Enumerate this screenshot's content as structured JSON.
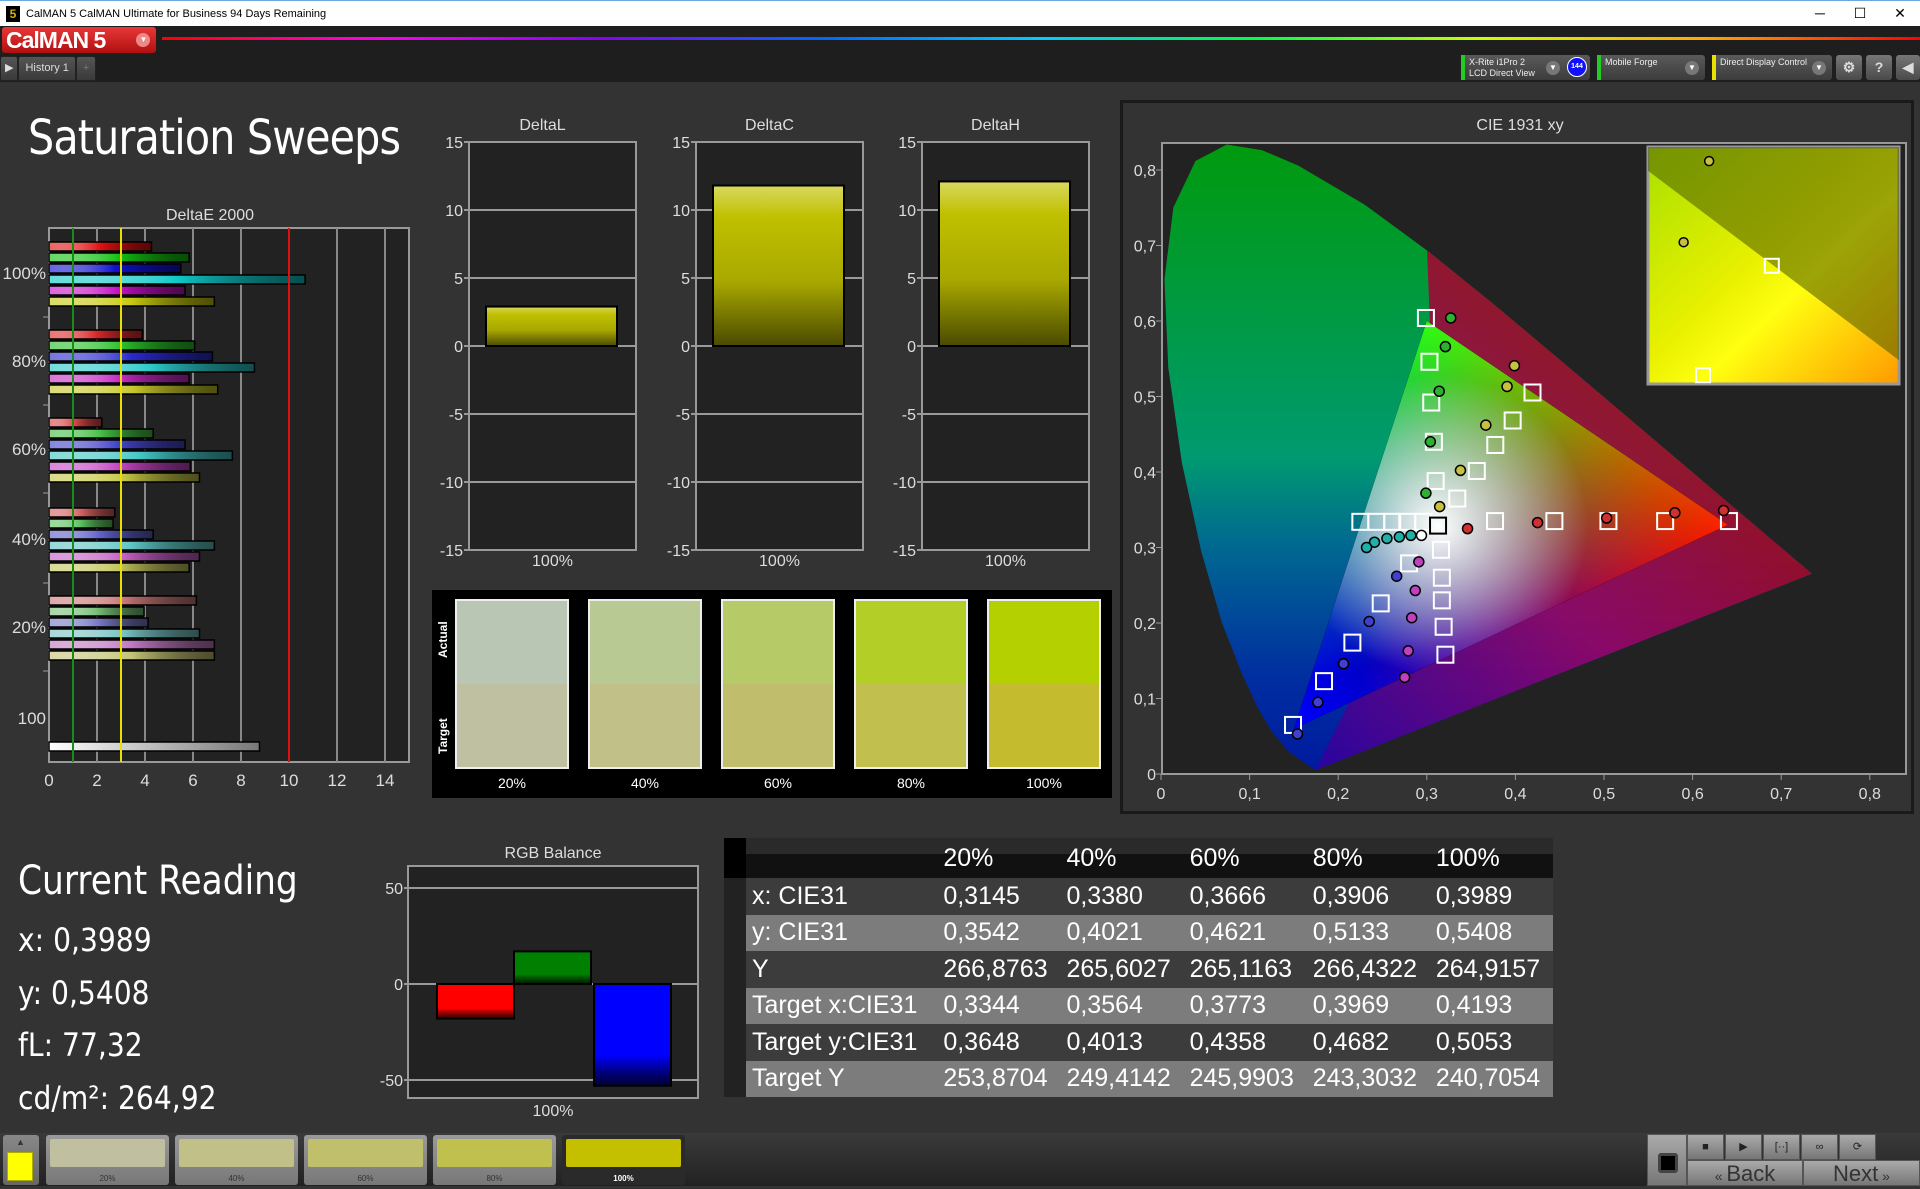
{
  "window": {
    "title": "CalMAN 5 CalMAN Ultimate for Business 94 Days Remaining",
    "icon": "5",
    "minimize": "─",
    "maximize": "☐",
    "close": "✕"
  },
  "app": {
    "logo": "CalMAN 5"
  },
  "tabs": [
    {
      "label": "History 1"
    }
  ],
  "devices": [
    {
      "line1": "X-Rite i1Pro 2",
      "line2": "LCD Direct View",
      "badge": "144",
      "color": "#22cc22"
    },
    {
      "line1": "Mobile Forge",
      "line2": "",
      "color": "#22cc22"
    },
    {
      "line1": "Direct Display Control",
      "line2": "",
      "color": "#e8e000"
    }
  ],
  "toolbar_icons": [
    "gear-icon",
    "help-icon",
    "collapse-icon"
  ],
  "page": {
    "title": "Saturation Sweeps"
  },
  "swatches": {
    "actual_label": "Actual",
    "target_label": "Target",
    "items": [
      {
        "label": "20%",
        "actual": "#b8c6b3",
        "target": "#bfbfa1"
      },
      {
        "label": "40%",
        "actual": "#b8c994",
        "target": "#c0c088"
      },
      {
        "label": "60%",
        "actual": "#b6cb68",
        "target": "#c0be6c"
      },
      {
        "label": "80%",
        "actual": "#b4ce28",
        "target": "#c1bf4e"
      },
      {
        "label": "100%",
        "actual": "#b4d000",
        "target": "#c4bc2e"
      }
    ]
  },
  "current_reading": {
    "title": "Current Reading",
    "x": "x: 0,3989",
    "y": "y: 0,5408",
    "fl": "fL: 77,32",
    "cdm2": "cd/m²: 264,92"
  },
  "table": {
    "headers": [
      "",
      "20%",
      "40%",
      "60%",
      "80%",
      "100%"
    ],
    "rows": [
      [
        "x: CIE31",
        "0,3145",
        "0,3380",
        "0,3666",
        "0,3906",
        "0,3989"
      ],
      [
        "y: CIE31",
        "0,3542",
        "0,4021",
        "0,4621",
        "0,5133",
        "0,5408"
      ],
      [
        "Y",
        "266,8763",
        "265,6027",
        "265,1163",
        "266,4322",
        "264,9157"
      ],
      [
        "Target x:CIE31",
        "0,3344",
        "0,3564",
        "0,3773",
        "0,3969",
        "0,4193"
      ],
      [
        "Target y:CIE31",
        "0,3648",
        "0,4013",
        "0,4358",
        "0,4682",
        "0,5053"
      ],
      [
        "Target Y",
        "253,8704",
        "249,4142",
        "245,9903",
        "243,3032",
        "240,7054"
      ]
    ]
  },
  "bottom": {
    "current_color": "#ffff00",
    "patches": [
      {
        "label": "20%",
        "color": "#c0bfa0"
      },
      {
        "label": "40%",
        "color": "#c0c088"
      },
      {
        "label": "60%",
        "color": "#c0bf6c"
      },
      {
        "label": "80%",
        "color": "#c0c04e"
      },
      {
        "label": "100%",
        "color": "#c4c000",
        "selected": true
      }
    ],
    "controls": [
      "stop-icon",
      "play-icon",
      "bracket-icon",
      "loop-icon",
      "refresh-icon"
    ],
    "back": "Back",
    "next": "Next"
  },
  "chart_data": [
    {
      "type": "bar",
      "orientation": "horizontal",
      "title": "DeltaE 2000",
      "xlim": [
        0,
        15
      ],
      "xticks": [
        0,
        2,
        4,
        6,
        8,
        10,
        12,
        14
      ],
      "reference_lines": [
        {
          "value": 1,
          "color": "#1a8a1a"
        },
        {
          "value": 3,
          "color": "#e8e000"
        },
        {
          "value": 10,
          "color": "#e01010"
        }
      ],
      "categories": [
        "100%",
        "80%",
        "60%",
        "40%",
        "20%"
      ],
      "series": [
        {
          "color": "#e01010",
          "values": [
            4.27,
            3.89,
            2.2,
            2.74,
            6.14
          ]
        },
        {
          "color": "#10c010",
          "values": [
            5.84,
            6.07,
            4.34,
            2.67,
            3.96
          ]
        },
        {
          "color": "#1010d0",
          "values": [
            5.49,
            6.81,
            5.67,
            4.34,
            4.13
          ]
        },
        {
          "color": "#10c8c8",
          "values": [
            10.67,
            8.56,
            7.64,
            6.89,
            6.27
          ]
        },
        {
          "color": "#c810c8",
          "values": [
            5.67,
            5.84,
            5.89,
            6.27,
            6.89
          ]
        },
        {
          "color": "#c8c810",
          "values": [
            6.89,
            7.03,
            6.27,
            5.84,
            6.89
          ]
        }
      ],
      "grayscale": {
        "label": "100",
        "value": 8.77,
        "color": "#ffffff"
      }
    },
    {
      "type": "bar",
      "title": "DeltaL",
      "categories": [
        "100%"
      ],
      "values": [
        2.9
      ],
      "ylim": [
        -15,
        15
      ],
      "yticks": [
        15,
        10,
        5,
        0,
        -5,
        -10,
        -15
      ]
    },
    {
      "type": "bar",
      "title": "DeltaC",
      "categories": [
        "100%"
      ],
      "values": [
        11.8
      ],
      "ylim": [
        -15,
        15
      ],
      "yticks": [
        15,
        10,
        5,
        0,
        -5,
        -10,
        -15
      ]
    },
    {
      "type": "bar",
      "title": "DeltaH",
      "categories": [
        "100%"
      ],
      "values": [
        12.1
      ],
      "ylim": [
        -15,
        15
      ],
      "yticks": [
        15,
        10,
        5,
        0,
        -5,
        -10,
        -15
      ]
    },
    {
      "type": "scatter",
      "title": "CIE 1931 xy",
      "xlim": [
        0,
        0.85
      ],
      "ylim": [
        0,
        0.85
      ],
      "xticks": [
        "0",
        "0,1",
        "0,2",
        "0,3",
        "0,4",
        "0,5",
        "0,6",
        "0,7",
        "0,8"
      ],
      "yticks": [
        "0",
        "0,1",
        "0,2",
        "0,3",
        "0,4",
        "0,5",
        "0,6",
        "0,7",
        "0,8"
      ],
      "gamut": {
        "red": [
          0.64,
          0.33
        ],
        "green": [
          0.3,
          0.6
        ],
        "blue": [
          0.15,
          0.06
        ],
        "white": [
          0.3127,
          0.329
        ]
      },
      "series": [
        {
          "color": "#d03030",
          "targets": [
            [
              0.377,
              0.335
            ],
            [
              0.444,
              0.335
            ],
            [
              0.505,
              0.335
            ],
            [
              0.569,
              0.335
            ],
            [
              0.641,
              0.335
            ]
          ],
          "measured": [
            [
              0.346,
              0.325
            ],
            [
              0.425,
              0.333
            ],
            [
              0.503,
              0.339
            ],
            [
              0.58,
              0.346
            ],
            [
              0.635,
              0.349
            ]
          ]
        },
        {
          "color": "#30b030",
          "targets": [
            [
              0.31,
              0.388
            ],
            [
              0.308,
              0.44
            ],
            [
              0.305,
              0.492
            ],
            [
              0.303,
              0.546
            ],
            [
              0.299,
              0.604
            ]
          ],
          "measured": [
            [
              0.299,
              0.372
            ],
            [
              0.304,
              0.44
            ],
            [
              0.314,
              0.507
            ],
            [
              0.321,
              0.566
            ],
            [
              0.327,
              0.604
            ]
          ]
        },
        {
          "color": "#4040d0",
          "targets": [
            [
              0.28,
              0.279
            ],
            [
              0.248,
              0.226
            ],
            [
              0.216,
              0.174
            ],
            [
              0.184,
              0.123
            ],
            [
              0.149,
              0.065
            ]
          ],
          "measured": [
            [
              0.266,
              0.262
            ],
            [
              0.235,
              0.202
            ],
            [
              0.206,
              0.146
            ],
            [
              0.177,
              0.095
            ],
            [
              0.154,
              0.053
            ]
          ]
        },
        {
          "color": "#20b0a8",
          "targets": [
            [
              0.296,
              0.334
            ],
            [
              0.278,
              0.334
            ],
            [
              0.261,
              0.334
            ],
            [
              0.243,
              0.334
            ],
            [
              0.225,
              0.334
            ]
          ],
          "measured": [
            [
              0.282,
              0.316
            ],
            [
              0.269,
              0.314
            ],
            [
              0.255,
              0.312
            ],
            [
              0.241,
              0.307
            ],
            [
              0.232,
              0.3
            ]
          ]
        },
        {
          "color": "#c040c0",
          "targets": [
            [
              0.316,
              0.297
            ],
            [
              0.317,
              0.26
            ],
            [
              0.317,
              0.23
            ],
            [
              0.319,
              0.195
            ],
            [
              0.321,
              0.158
            ]
          ],
          "measured": [
            [
              0.291,
              0.281
            ],
            [
              0.287,
              0.243
            ],
            [
              0.283,
              0.207
            ],
            [
              0.279,
              0.163
            ],
            [
              0.275,
              0.128
            ]
          ]
        },
        {
          "color": "#c8c040",
          "targets": [
            [
              0.3344,
              0.3648
            ],
            [
              0.3564,
              0.4013
            ],
            [
              0.3773,
              0.4358
            ],
            [
              0.3969,
              0.4682
            ],
            [
              0.4193,
              0.5053
            ]
          ],
          "measured": [
            [
              0.3145,
              0.3542
            ],
            [
              0.338,
              0.4021
            ],
            [
              0.3666,
              0.4621
            ],
            [
              0.3906,
              0.5133
            ],
            [
              0.3989,
              0.5408
            ]
          ]
        },
        {
          "color": "#ffffff",
          "targets": [
            [
              0.3127,
              0.329
            ]
          ],
          "measured": [
            [
              0.294,
              0.316
            ]
          ]
        }
      ]
    },
    {
      "type": "bar",
      "title": "RGB Balance",
      "categories": [
        "100%"
      ],
      "ylim": [
        -60,
        60
      ],
      "yticks": [
        50,
        0,
        -50
      ],
      "series": [
        {
          "color": "#ff0000",
          "values": [
            -18
          ]
        },
        {
          "color": "#008000",
          "values": [
            17
          ]
        },
        {
          "color": "#0000ff",
          "values": [
            -53
          ]
        }
      ]
    }
  ]
}
